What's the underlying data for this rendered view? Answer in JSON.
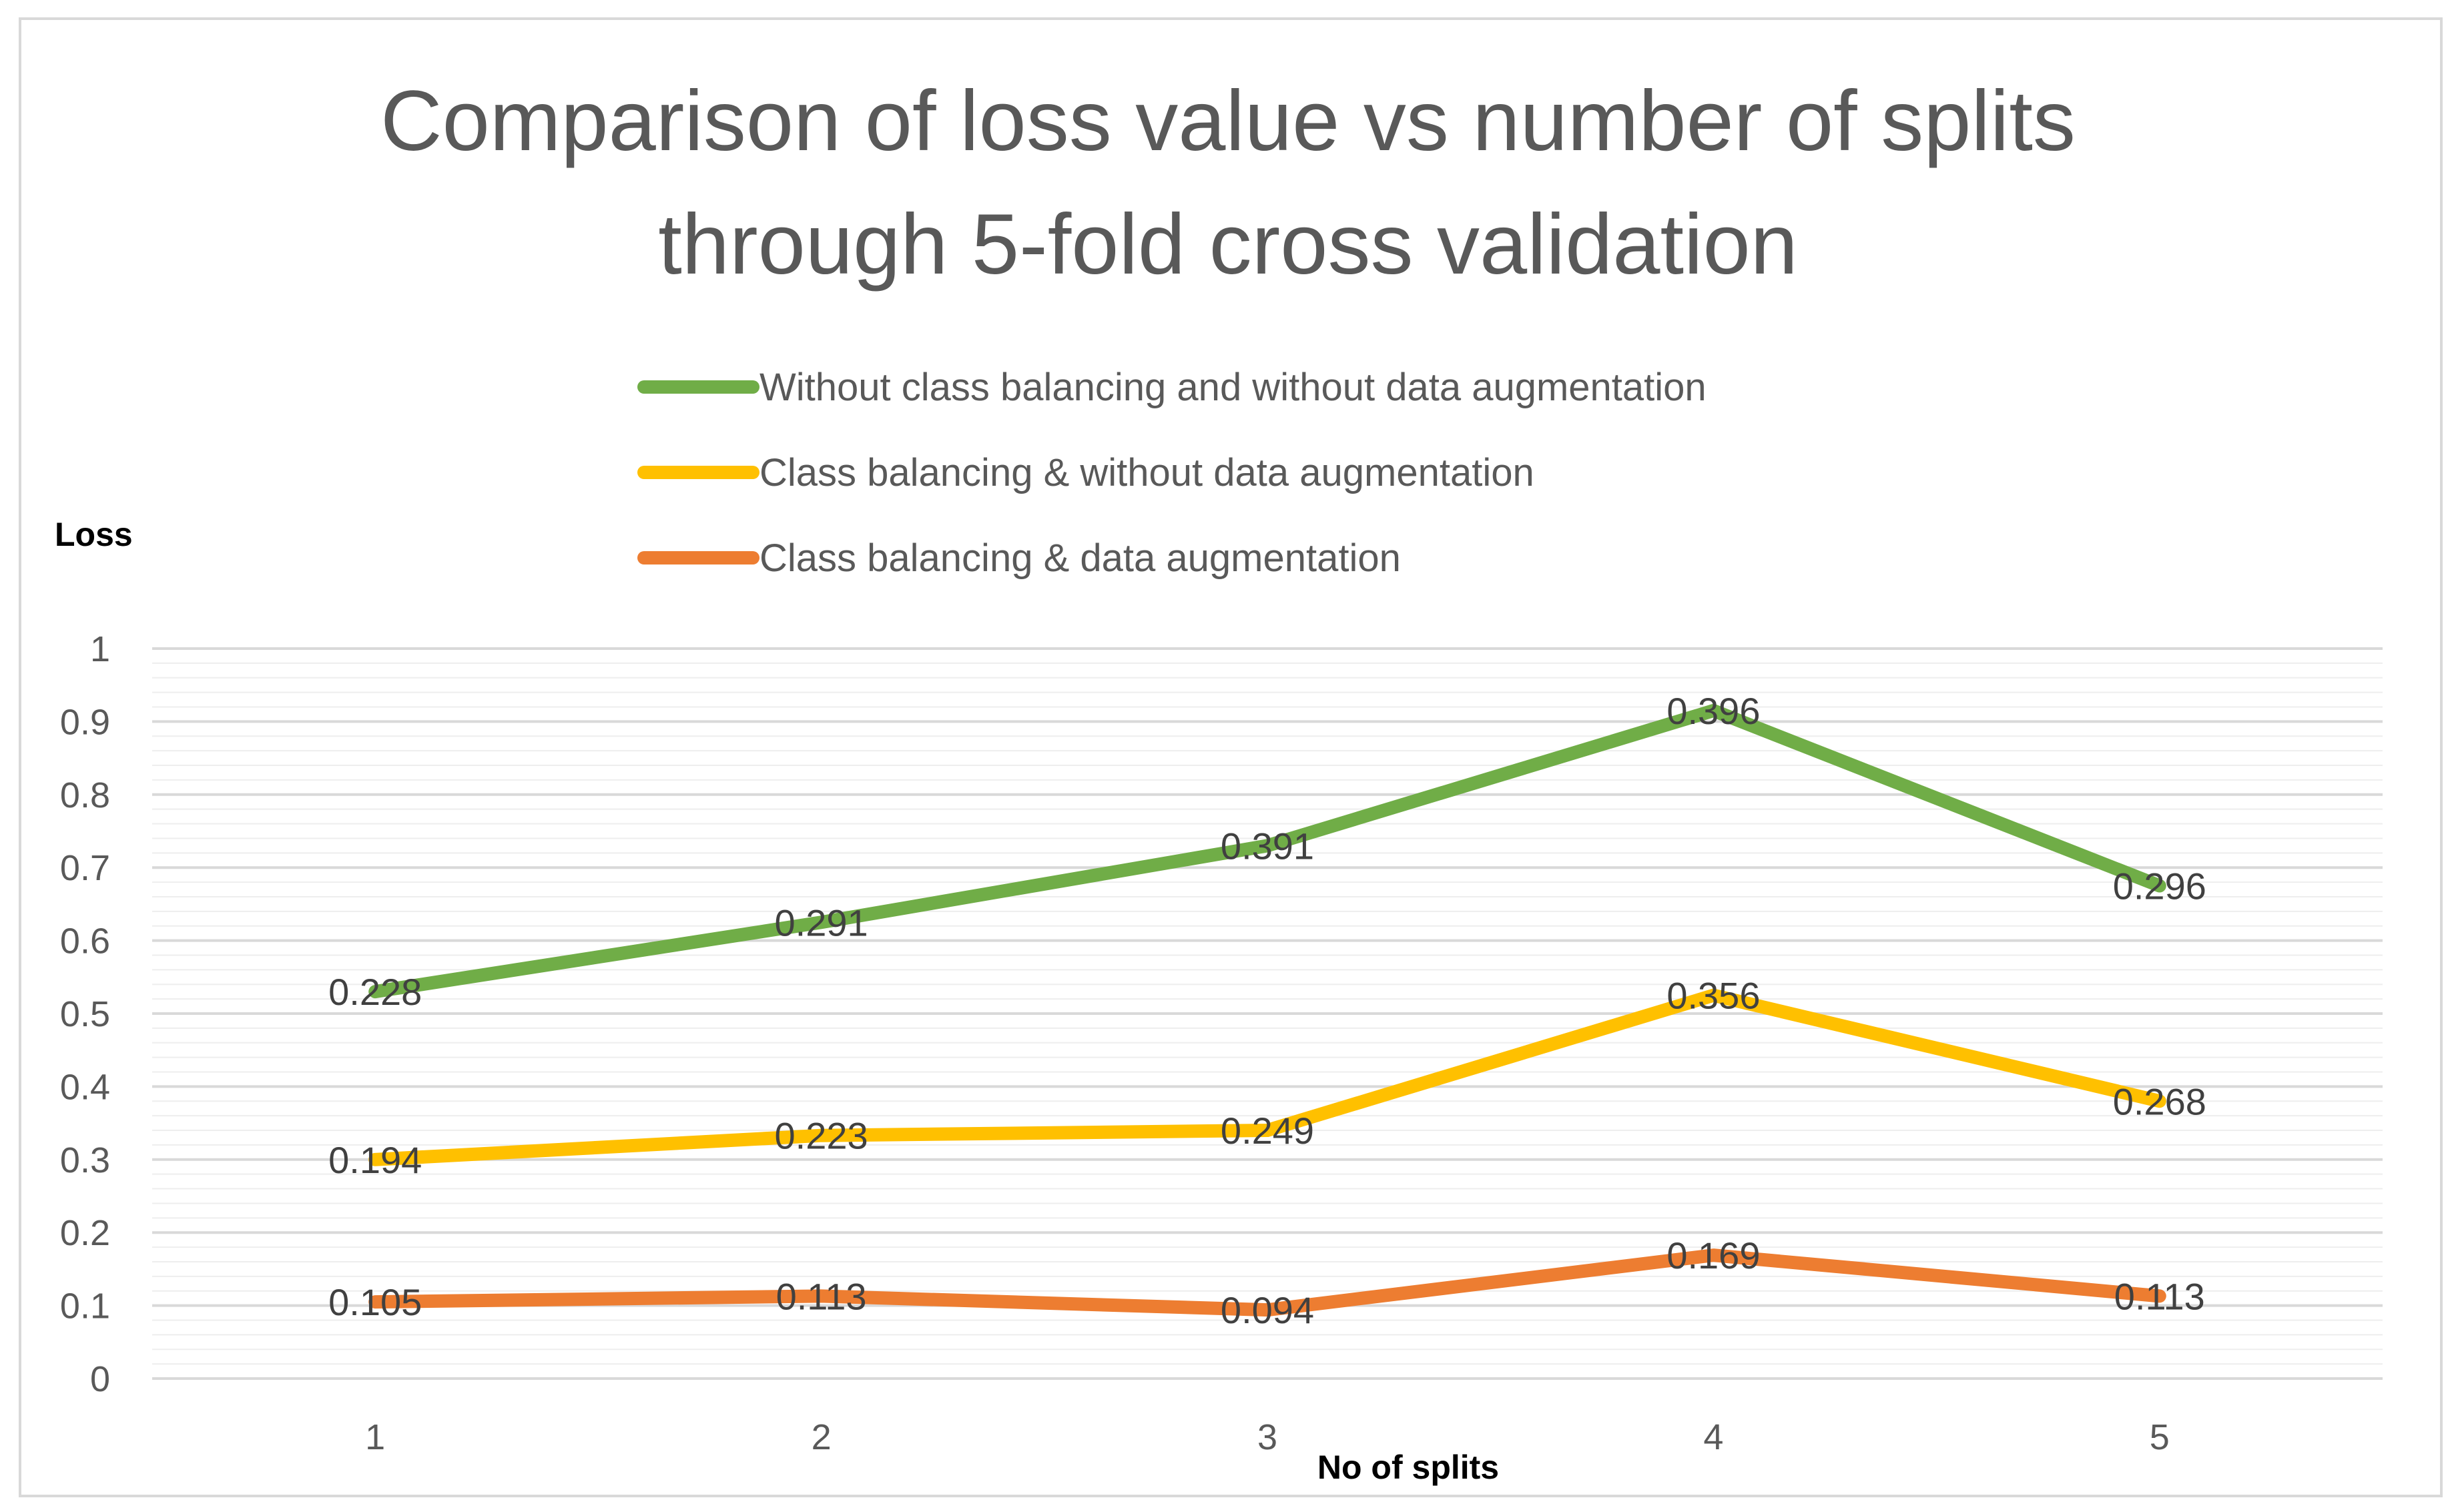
{
  "chart_data": {
    "type": "line",
    "title_lines": [
      "Comparison of loss value vs number of splits",
      "through 5-fold cross validation"
    ],
    "xlabel": "No of splits",
    "ylabel": "Loss",
    "categories": [
      "1",
      "2",
      "3",
      "4",
      "5"
    ],
    "ylim": [
      0,
      1
    ],
    "yticks": [
      "0",
      "0.1",
      "0.2",
      "0.3",
      "0.4",
      "0.5",
      "0.6",
      "0.7",
      "0.8",
      "0.9",
      "1"
    ],
    "grid": true,
    "legend_position": "top",
    "series": [
      {
        "name": "Without class balancing and without data augmentation",
        "color": "#70ad47",
        "values": [
          0.53,
          0.625,
          0.73,
          0.915,
          0.675
        ],
        "labels": [
          "0.228",
          "0.291",
          "0.391",
          "0.396",
          "0.296"
        ]
      },
      {
        "name": "Class balancing & without data augmentation",
        "color": "#ffc000",
        "values": [
          0.3,
          0.333,
          0.34,
          0.525,
          0.38
        ],
        "labels": [
          "0.194",
          "0.223",
          "0.249",
          "0.356",
          "0.268"
        ]
      },
      {
        "name": "Class balancing & data augmentation",
        "color": "#ed7d31",
        "values": [
          0.105,
          0.113,
          0.094,
          0.169,
          0.113
        ],
        "labels": [
          "0.105",
          "0.113",
          "0.094",
          "0.169",
          "0.113"
        ]
      }
    ]
  }
}
